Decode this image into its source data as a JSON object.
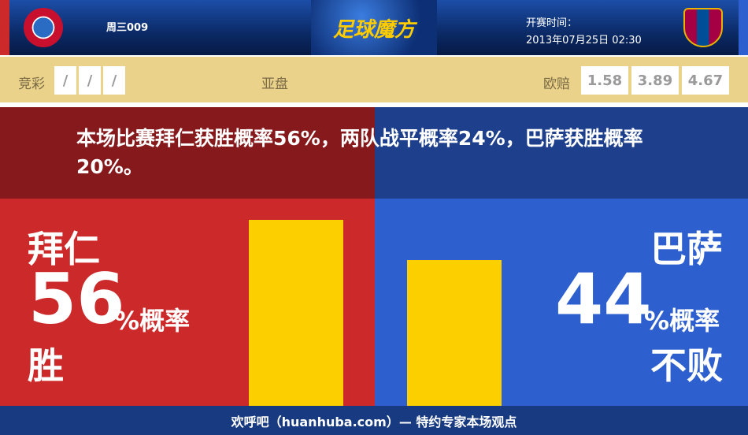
{
  "header": {
    "match_no": "周三009",
    "logo_text": "足球魔方",
    "kickoff_label": "开赛时间：",
    "kickoff_time": "2013年07月25日 02:30",
    "home_logo": "fc-bayern-crest",
    "away_logo": "fc-barcelona-crest"
  },
  "odds": {
    "jingcai_label": "竞彩",
    "jingcai": [
      "/",
      "/",
      "/"
    ],
    "yapan_label": "亚盘",
    "oupei_label": "欧赔",
    "oupei": [
      "1.58",
      "3.89",
      "4.67"
    ]
  },
  "summary": "本场比赛拜仁获胜概率56%，两队战平概率24%，巴萨获胜概率20%。",
  "home": {
    "name": "拜仁",
    "percent": "56",
    "unit": "%概率",
    "outcome": "胜",
    "value": 56,
    "color": "#cc2a2a"
  },
  "away": {
    "name": "巴萨",
    "percent": "44",
    "unit": "%概率",
    "outcome": "不败",
    "value": 44,
    "color": "#2d5fcf"
  },
  "bar_color": "#fcd000",
  "footer": "欢呼吧（huanhuba.com）— 特约专家本场观点"
}
